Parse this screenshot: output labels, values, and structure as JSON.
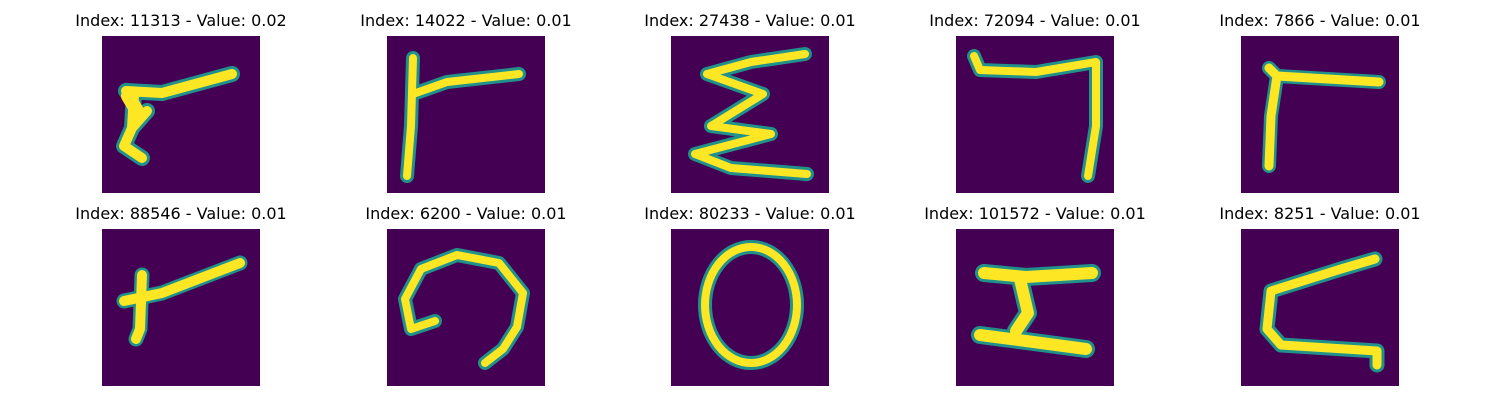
{
  "colors": {
    "background": "#440154",
    "stroke": "#fde725",
    "edge": "#21918c"
  },
  "samples": [
    {
      "title": "Index: 11313 - Value: 0.02"
    },
    {
      "title": "Index: 14022 - Value: 0.01"
    },
    {
      "title": "Index: 27438 - Value: 0.01"
    },
    {
      "title": "Index: 72094 - Value: 0.01"
    },
    {
      "title": "Index: 7866 - Value: 0.01"
    },
    {
      "title": "Index: 88546 - Value: 0.01"
    },
    {
      "title": "Index: 6200 - Value: 0.01"
    },
    {
      "title": "Index: 80233 - Value: 0.01"
    },
    {
      "title": "Index: 101572 - Value: 0.01"
    },
    {
      "title": "Index: 8251 - Value: 0.01"
    }
  ]
}
